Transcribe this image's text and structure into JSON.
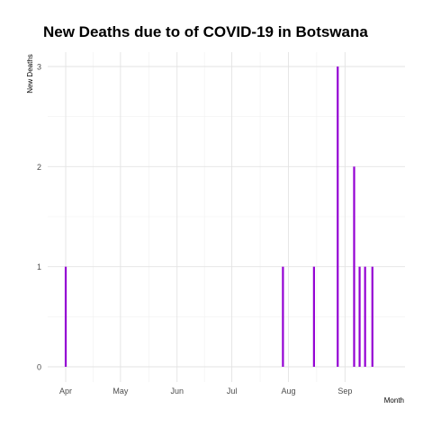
{
  "chart_data": {
    "type": "bar",
    "title": "New Deaths due to of COVID-19 in Botswana",
    "xlabel": "Month",
    "ylabel": "New Deaths",
    "x_ticks": [
      "Apr",
      "May",
      "Jun",
      "Jul",
      "Aug",
      "Sep"
    ],
    "x_tick_dates": [
      "2020-04-01",
      "2020-05-01",
      "2020-06-01",
      "2020-07-01",
      "2020-08-01",
      "2020-09-01"
    ],
    "y_ticks": [
      0,
      1,
      2,
      3
    ],
    "xlim": [
      "2020-03-31",
      "2020-09-24"
    ],
    "ylim": [
      0,
      3
    ],
    "grid": true,
    "bar_color": "#9400D3",
    "points": [
      {
        "date": "2020-04-01",
        "value": 1
      },
      {
        "date": "2020-07-29",
        "value": 1
      },
      {
        "date": "2020-08-15",
        "value": 1
      },
      {
        "date": "2020-08-28",
        "value": 3
      },
      {
        "date": "2020-09-06",
        "value": 2
      },
      {
        "date": "2020-09-09",
        "value": 1
      },
      {
        "date": "2020-09-12",
        "value": 1
      },
      {
        "date": "2020-09-16",
        "value": 1
      }
    ]
  }
}
